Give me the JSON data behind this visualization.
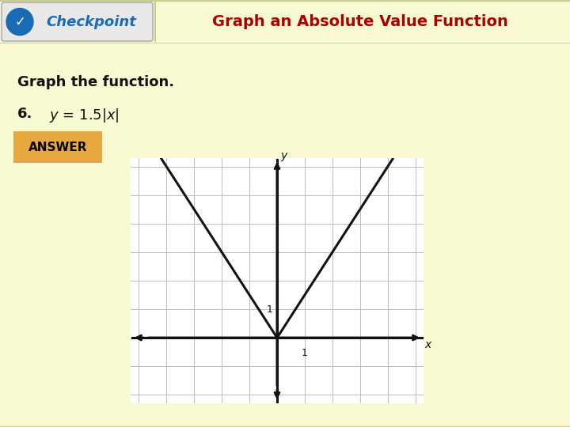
{
  "bg_color": "#FAFAD2",
  "header_bg": "#F5F5C8",
  "header_border_color": "#CCCC99",
  "checkpoint_text": "Checkpoint",
  "checkpoint_color": "#1A6BB5",
  "title_text": "Graph an Absolute Value Function",
  "title_color": "#AA0000",
  "body_text_1": "Graph the function.",
  "answer_label": "ANSWER",
  "answer_bg": "#E8A840",
  "answer_text_color": "#000000",
  "graph_xlim": [
    -5,
    5
  ],
  "graph_ylim": [
    -2,
    6
  ],
  "grid_color": "#BBBBBB",
  "axis_color": "#111111",
  "curve_color": "#111111",
  "curve_linewidth": 2.2,
  "slope": 1.5,
  "checkmark_bg": "#1A6BB5",
  "btn_bg": "#E8E8E8",
  "btn_edge": "#BBBBBB"
}
